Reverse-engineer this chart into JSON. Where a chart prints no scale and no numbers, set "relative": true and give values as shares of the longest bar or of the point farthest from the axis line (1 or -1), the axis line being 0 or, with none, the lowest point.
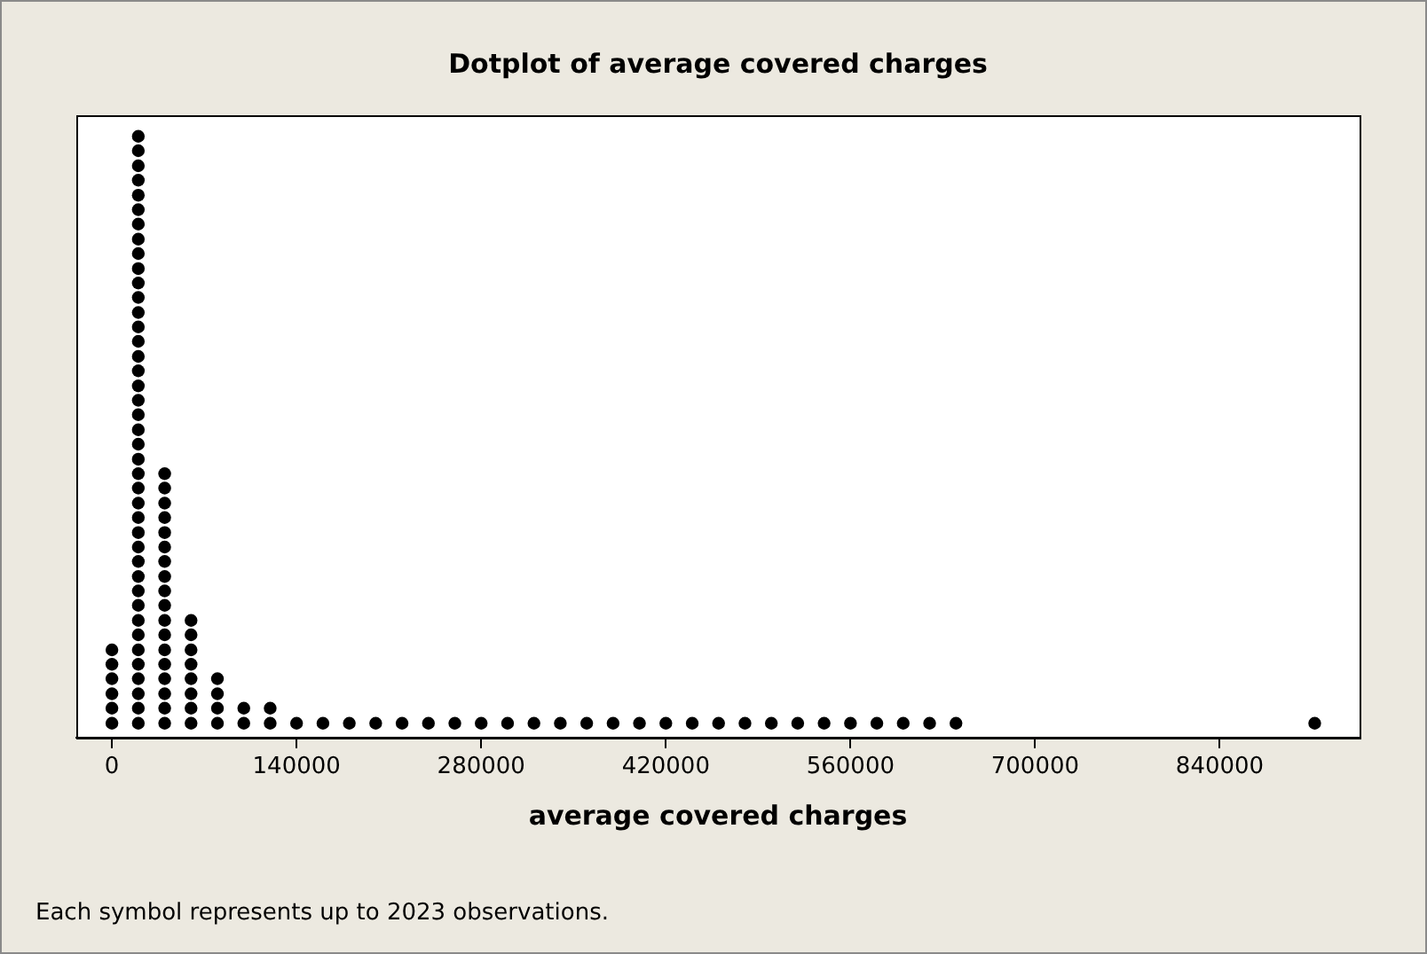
{
  "chart_data": {
    "type": "scatter",
    "title": "Dotplot of average covered charges",
    "xlabel": "average covered charges",
    "annotations": [
      "Each symbol represents up to 2023 observations."
    ],
    "relative": true,
    "marker": "circle",
    "grid": false,
    "legend": false,
    "xlim": [
      -27000,
      946000
    ],
    "xticks": [
      0,
      140000,
      280000,
      420000,
      560000,
      700000,
      840000
    ],
    "series": [
      {
        "color": "#000000",
        "x": [
          0,
          0,
          0,
          0,
          0,
          0,
          20000,
          20000,
          20000,
          20000,
          20000,
          20000,
          20000,
          20000,
          20000,
          20000,
          20000,
          20000,
          20000,
          20000,
          20000,
          20000,
          20000,
          20000,
          20000,
          20000,
          20000,
          20000,
          20000,
          20000,
          20000,
          20000,
          20000,
          20000,
          20000,
          20000,
          20000,
          20000,
          20000,
          20000,
          20000,
          20000,
          20000,
          20000,
          20000,
          20000,
          20000,
          40000,
          40000,
          40000,
          40000,
          40000,
          40000,
          40000,
          40000,
          40000,
          40000,
          40000,
          40000,
          40000,
          40000,
          40000,
          40000,
          40000,
          40000,
          60000,
          60000,
          60000,
          60000,
          60000,
          60000,
          60000,
          60000,
          80000,
          80000,
          80000,
          80000,
          100000,
          100000,
          120000,
          120000,
          140000,
          160000,
          180000,
          200000,
          220000,
          240000,
          260000,
          280000,
          300000,
          320000,
          340000,
          360000,
          380000,
          400000,
          420000,
          440000,
          460000,
          480000,
          500000,
          520000,
          540000,
          560000,
          580000,
          600000,
          620000,
          640000,
          912000
        ],
        "values": [
          0.024,
          0.049,
          0.073,
          0.098,
          0.122,
          0.146,
          0.024,
          0.049,
          0.073,
          0.098,
          0.122,
          0.146,
          0.171,
          0.195,
          0.22,
          0.244,
          0.268,
          0.293,
          0.317,
          0.341,
          0.366,
          0.39,
          0.415,
          0.439,
          0.463,
          0.488,
          0.512,
          0.537,
          0.561,
          0.585,
          0.61,
          0.634,
          0.659,
          0.683,
          0.707,
          0.732,
          0.756,
          0.78,
          0.805,
          0.829,
          0.854,
          0.878,
          0.902,
          0.927,
          0.951,
          0.976,
          1,
          0.024,
          0.049,
          0.073,
          0.098,
          0.122,
          0.146,
          0.171,
          0.195,
          0.22,
          0.244,
          0.268,
          0.293,
          0.317,
          0.341,
          0.366,
          0.39,
          0.415,
          0.439,
          0.024,
          0.049,
          0.073,
          0.098,
          0.122,
          0.146,
          0.171,
          0.195,
          0.024,
          0.049,
          0.073,
          0.098,
          0.024,
          0.049,
          0.024,
          0.049,
          0.024,
          0.024,
          0.024,
          0.024,
          0.024,
          0.024,
          0.024,
          0.024,
          0.024,
          0.024,
          0.024,
          0.024,
          0.024,
          0.024,
          0.024,
          0.024,
          0.024,
          0.024,
          0.024,
          0.024,
          0.024,
          0.024,
          0.024,
          0.024,
          0.024,
          0.024,
          0.024
        ]
      }
    ]
  }
}
